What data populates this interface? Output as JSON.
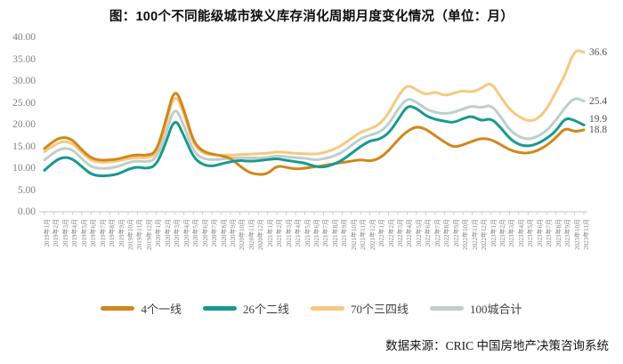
{
  "title": "图：100个不同能级城市狭义库存消化周期月度变化情况（单位：月）",
  "footer": {
    "source_label": "数据来源：CRIC 中国房地产决策咨询系统"
  },
  "chart_data": {
    "type": "line",
    "title": "100个不同能级城市狭义库存消化周期月度变化情况",
    "unit": "月",
    "grid": false,
    "legend_position": "bottom",
    "y_axis": {
      "min": 0,
      "max": 40,
      "step": 5,
      "tick_labels": [
        "40.00",
        "35.00",
        "30.00",
        "25.00",
        "20.00",
        "15.00",
        "10.00",
        "5.00",
        "0.00"
      ]
    },
    "x": [
      "2019年1月",
      "2019年2月",
      "2019年3月",
      "2019年4月",
      "2019年5月",
      "2019年6月",
      "2019年7月",
      "2019年8月",
      "2019年9月",
      "2019年10月",
      "2019年11月",
      "2019年12月",
      "2020年1月",
      "2020年2月",
      "2020年3月",
      "2020年4月",
      "2020年5月",
      "2020年6月",
      "2020年7月",
      "2020年8月",
      "2020年9月",
      "2020年10月",
      "2020年11月",
      "2020年12月",
      "2021年1月",
      "2021年2月",
      "2021年3月",
      "2021年4月",
      "2021年5月",
      "2021年6月",
      "2021年7月",
      "2021年8月",
      "2021年9月",
      "2021年10月",
      "2021年11月",
      "2021年12月",
      "2022年1月",
      "2022年2月",
      "2022年3月",
      "2022年4月",
      "2022年5月",
      "2022年6月",
      "2022年7月",
      "2022年8月",
      "2022年9月",
      "2022年10月",
      "2022年11月",
      "2022年12月",
      "2023年1月",
      "2023年2月",
      "2023年3月",
      "2023年4月",
      "2023年5月",
      "2023年6月",
      "2023年7月",
      "2023年8月",
      "2023年9月",
      "2023年10月",
      "2023年11月"
    ],
    "series": [
      {
        "name": "4个一线",
        "color": "#D2861B",
        "end_label": "18.8",
        "values": [
          14.5,
          16.3,
          17.2,
          16.6,
          14.2,
          12.3,
          11.8,
          11.9,
          12.1,
          12.8,
          13.1,
          12.9,
          13.6,
          20.5,
          28.8,
          23.5,
          16.0,
          13.9,
          13.2,
          12.9,
          12.3,
          10.5,
          9.0,
          8.5,
          8.7,
          10.6,
          10.2,
          9.8,
          10.0,
          10.3,
          10.6,
          11.0,
          11.3,
          11.6,
          12.0,
          11.6,
          12.2,
          14.0,
          16.5,
          18.5,
          19.6,
          19.0,
          17.5,
          16.0,
          14.8,
          15.3,
          16.2,
          16.9,
          16.6,
          15.5,
          14.2,
          13.6,
          13.4,
          14.0,
          15.2,
          17.0,
          19.3,
          18.3,
          18.8
        ]
      },
      {
        "name": "26个二线",
        "color": "#18998F",
        "end_label": "19.9",
        "values": [
          9.5,
          11.5,
          12.6,
          12.2,
          10.4,
          8.6,
          8.2,
          8.3,
          8.7,
          9.8,
          10.3,
          9.9,
          10.6,
          15.5,
          21.8,
          17.5,
          12.5,
          10.8,
          10.4,
          11.0,
          11.5,
          11.8,
          11.6,
          11.7,
          12.0,
          12.2,
          11.8,
          11.5,
          11.2,
          10.4,
          10.2,
          10.8,
          11.8,
          13.4,
          15.0,
          16.3,
          16.6,
          18.0,
          21.0,
          24.4,
          23.8,
          22.0,
          21.2,
          20.8,
          20.4,
          21.4,
          22.0,
          20.8,
          21.5,
          19.5,
          16.8,
          15.4,
          15.0,
          15.6,
          16.8,
          18.5,
          21.6,
          21.0,
          19.9
        ]
      },
      {
        "name": "70个三四线",
        "color": "#F6C981",
        "end_label": "36.6",
        "values": [
          13.8,
          15.3,
          16.2,
          15.8,
          13.6,
          11.8,
          11.3,
          11.4,
          11.7,
          12.2,
          12.5,
          12.3,
          13.0,
          19.5,
          27.6,
          22.5,
          15.5,
          13.4,
          13.0,
          13.0,
          13.0,
          13.1,
          13.2,
          13.3,
          13.4,
          13.8,
          13.6,
          13.4,
          13.3,
          13.2,
          13.5,
          14.2,
          15.3,
          16.8,
          18.3,
          19.0,
          20.0,
          22.5,
          26.5,
          29.2,
          28.0,
          26.8,
          27.6,
          26.6,
          27.2,
          27.8,
          27.4,
          28.3,
          29.8,
          26.5,
          23.5,
          21.8,
          20.8,
          21.2,
          23.5,
          27.5,
          31.5,
          37.2,
          36.6
        ]
      },
      {
        "name": "100城合计",
        "color": "#BDCFCB",
        "end_label": "25.4",
        "values": [
          11.9,
          13.6,
          14.7,
          14.3,
          12.2,
          10.3,
          9.9,
          10.0,
          10.4,
          11.3,
          11.7,
          11.4,
          12.1,
          17.5,
          24.5,
          19.8,
          13.8,
          12.2,
          11.9,
          12.1,
          12.3,
          12.4,
          12.4,
          12.3,
          12.5,
          12.9,
          12.6,
          12.4,
          12.3,
          11.9,
          12.1,
          12.7,
          13.6,
          15.2,
          16.8,
          17.6,
          18.2,
          20.0,
          23.5,
          26.1,
          25.2,
          23.6,
          22.8,
          22.5,
          22.8,
          23.6,
          24.3,
          23.8,
          24.6,
          22.0,
          18.8,
          17.2,
          16.6,
          17.2,
          18.6,
          21.0,
          24.0,
          26.2,
          25.4
        ]
      }
    ]
  }
}
